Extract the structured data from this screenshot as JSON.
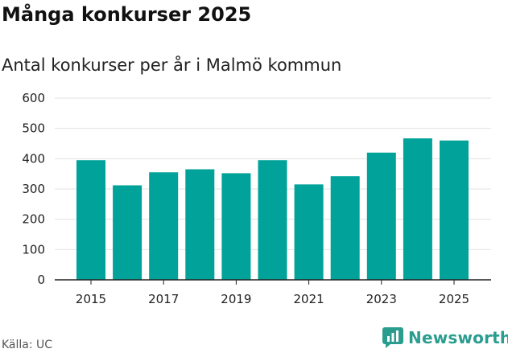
{
  "title": "Många konkurser 2025",
  "subtitle": "Antal konkurser per år i Malmö kommun",
  "source": "Källa: UC",
  "brand": {
    "name": "Newsworthy",
    "color": "#2a9d8f"
  },
  "colors": {
    "bar": "#00a299",
    "grid": "#e3e3e3",
    "axis": "#222222"
  },
  "chart_data": {
    "type": "bar",
    "title": "Många konkurser 2025",
    "subtitle": "Antal konkurser per år i Malmö kommun",
    "categories": [
      "2015",
      "2016",
      "2017",
      "2018",
      "2019",
      "2020",
      "2021",
      "2022",
      "2023",
      "2024",
      "2025"
    ],
    "values": [
      395,
      312,
      355,
      365,
      352,
      395,
      315,
      342,
      420,
      467,
      460
    ],
    "x_tick_labels": [
      "2015",
      "2017",
      "2019",
      "2021",
      "2023",
      "2025"
    ],
    "y_ticks": [
      0,
      100,
      200,
      300,
      400,
      500,
      600
    ],
    "ylim": [
      0,
      600
    ],
    "xlabel": "",
    "ylabel": "",
    "grid": true
  }
}
